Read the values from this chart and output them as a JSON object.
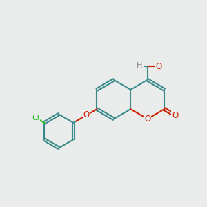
{
  "bg_color": "#eaebeb",
  "bond_color": "#3a8a8a",
  "oxygen_color": "#cc2200",
  "chlorine_color": "#22bb22",
  "hydrogen_color": "#888888",
  "linewidth": 1.5,
  "dbo": 0.07,
  "xlim": [
    0,
    10
  ],
  "ylim": [
    0,
    10
  ]
}
